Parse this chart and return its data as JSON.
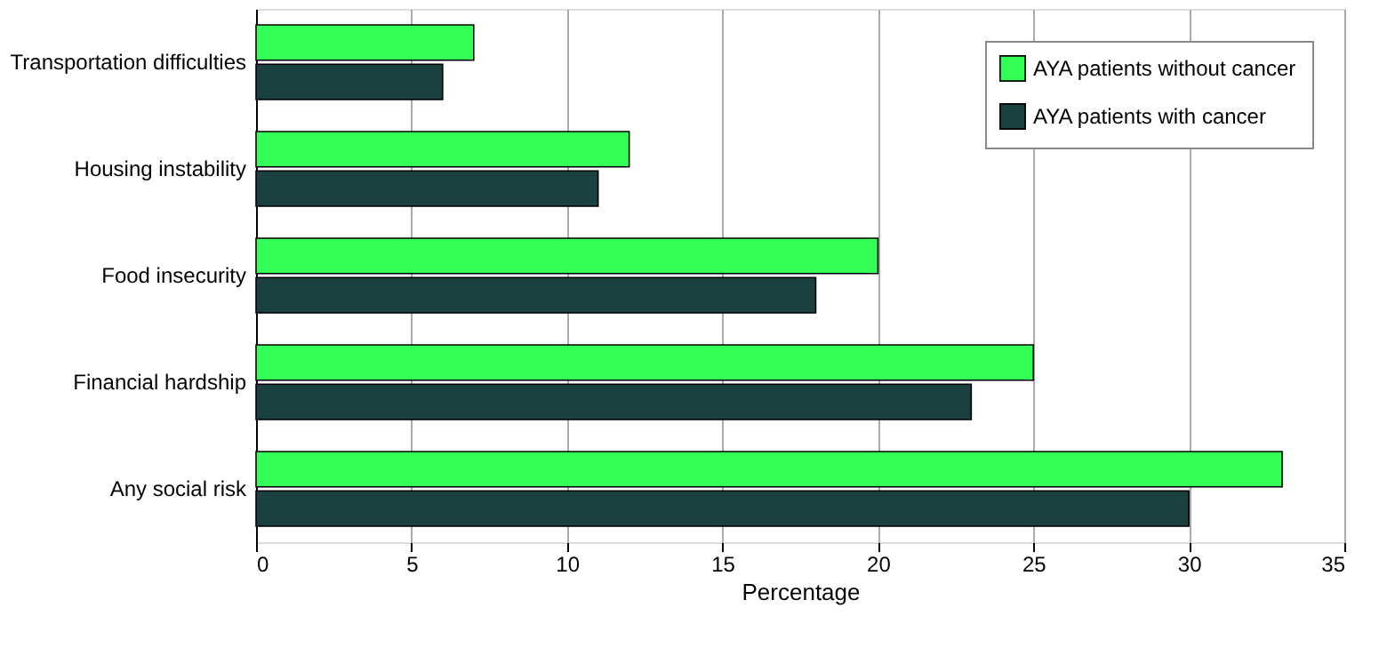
{
  "chart_data": {
    "type": "bar",
    "orientation": "horizontal",
    "xlabel": "Percentage",
    "categories": [
      "Transportation difficulties",
      "Housing instability",
      "Food insecurity",
      "Financial hardship",
      "Any social risk"
    ],
    "series": [
      {
        "name": "AYA patients without cancer",
        "color": "#33ff57",
        "values": [
          7,
          12,
          20,
          25,
          33
        ]
      },
      {
        "name": "AYA patients with cancer",
        "color": "#1a4040",
        "values": [
          6,
          11,
          18,
          23,
          30
        ]
      }
    ],
    "xlim": [
      0,
      35
    ],
    "xticks": [
      0,
      5,
      10,
      15,
      20,
      25,
      30,
      35
    ],
    "grid": "x",
    "legend": "top right"
  }
}
